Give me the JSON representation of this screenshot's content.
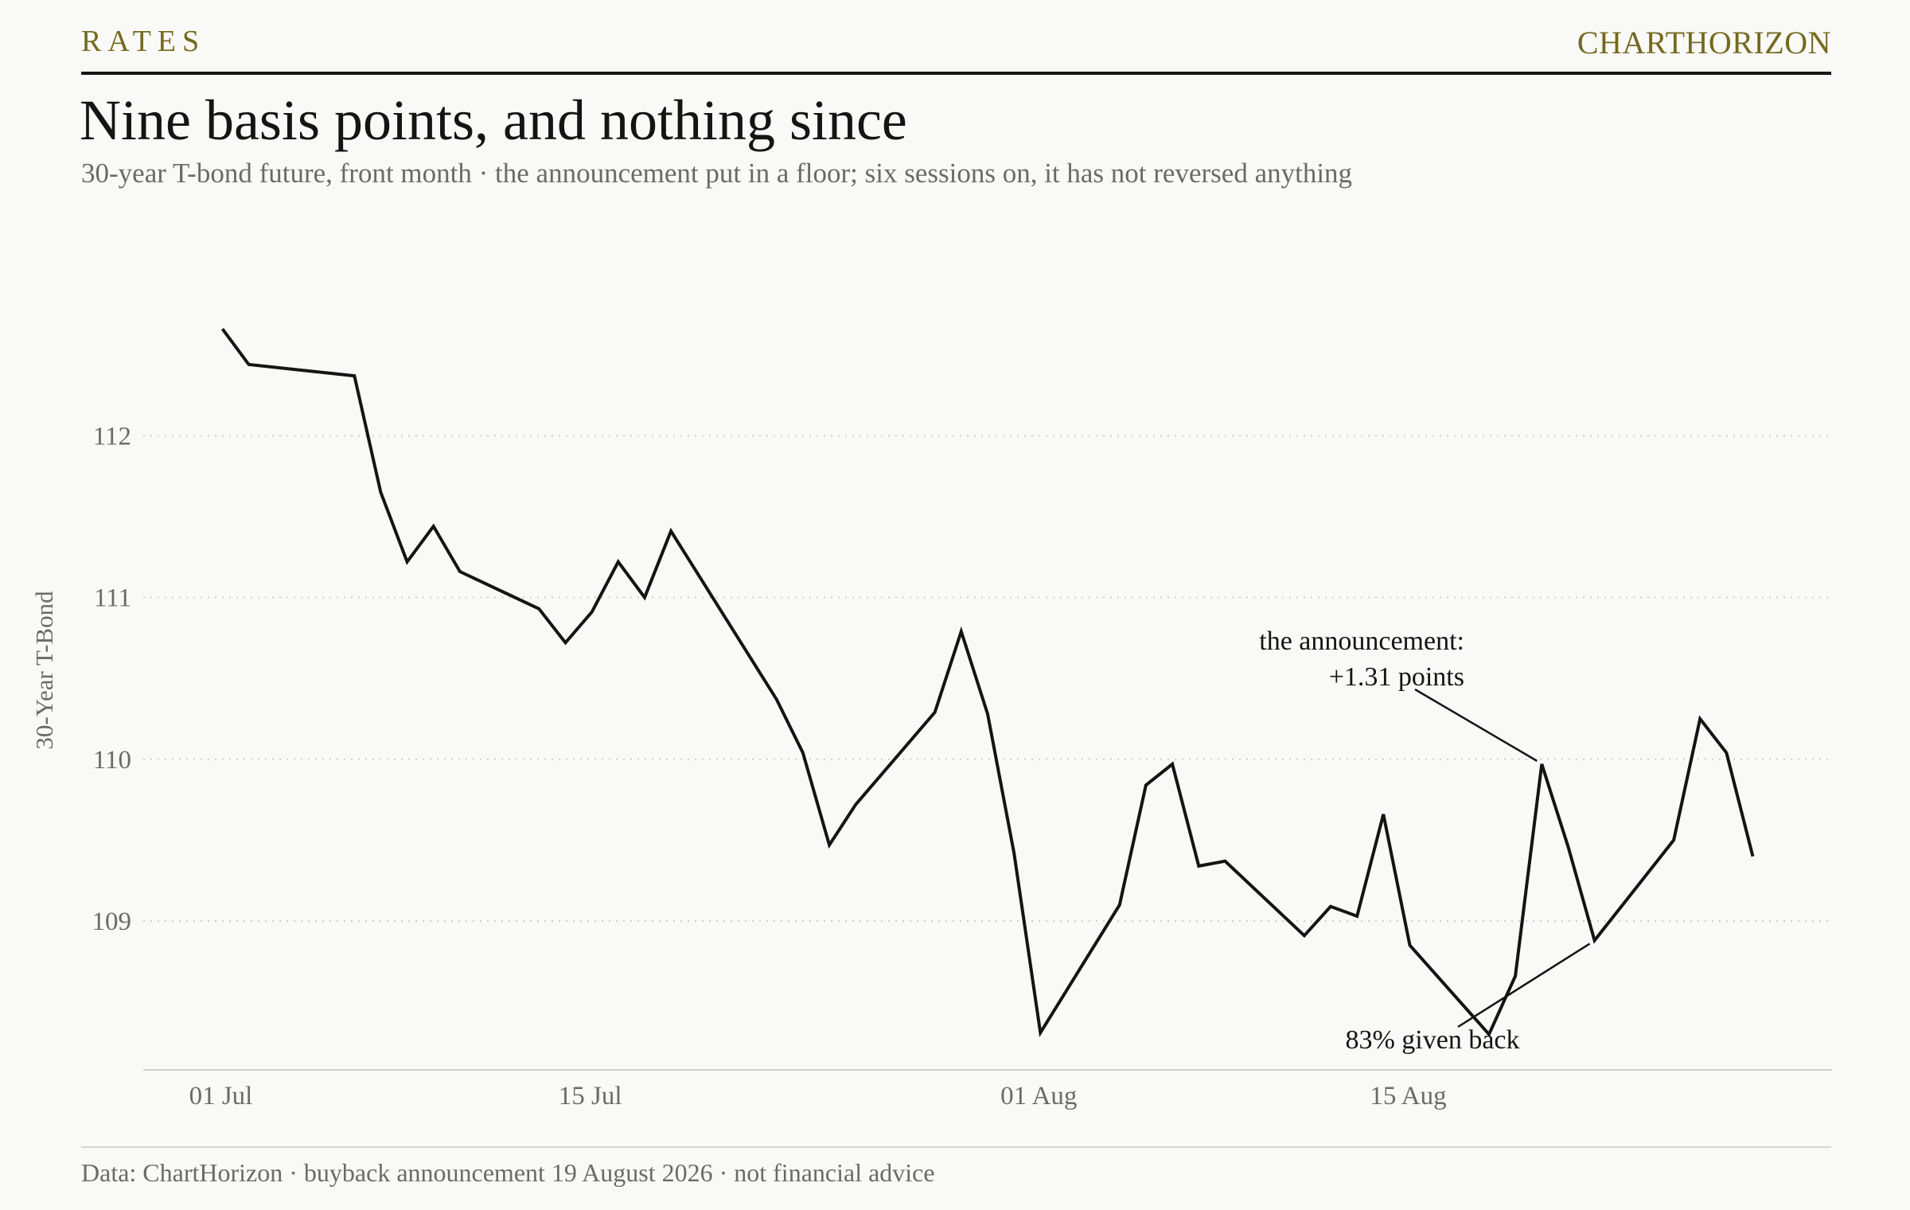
{
  "header": {
    "kicker": "RATES",
    "brand": "CHARTHORIZON",
    "title": "Nine basis points, and nothing since",
    "subtitle": "30-year T-bond future, front month · the announcement put in a floor; six sessions on, it has not reversed anything"
  },
  "footer": {
    "source": "Data: ChartHorizon · buyback announcement 19 August 2026 · not financial advice"
  },
  "colors": {
    "background": "#f9f9f7",
    "line": "#141414",
    "accent": "#75691f",
    "muted_text": "#6b6b66",
    "grid": "#cfcfc9",
    "axis": "#cfcfc9"
  },
  "chart_data": {
    "type": "line",
    "title": "Nine basis points, and nothing since",
    "subtitle": "30-year T-bond future, front month · the announcement put in a floor; six sessions on, it has not reversed anything",
    "xlabel": "",
    "ylabel": "30-Year T-Bond",
    "x_ticks": [
      "01 Jul",
      "15 Jul",
      "01 Aug",
      "15 Aug"
    ],
    "x_tick_dates": [
      "2026-07-01",
      "2026-07-15",
      "2026-08-01",
      "2026-08-15"
    ],
    "y_ticks": [
      109,
      110,
      111,
      112
    ],
    "ylim": [
      108.08,
      113.02
    ],
    "xlim": [
      "2026-06-28",
      "2026-08-31"
    ],
    "grid": "horizontal dotted",
    "legend": "none",
    "series": [
      {
        "points": [
          {
            "x": "2026-07-01",
            "y": 112.66
          },
          {
            "x": "2026-07-02",
            "y": 112.44
          },
          {
            "x": "2026-07-06",
            "y": 112.37
          },
          {
            "x": "2026-07-07",
            "y": 111.65
          },
          {
            "x": "2026-07-08",
            "y": 111.22
          },
          {
            "x": "2026-07-09",
            "y": 111.44
          },
          {
            "x": "2026-07-10",
            "y": 111.16
          },
          {
            "x": "2026-07-13",
            "y": 110.93
          },
          {
            "x": "2026-07-14",
            "y": 110.72
          },
          {
            "x": "2026-07-15",
            "y": 110.91
          },
          {
            "x": "2026-07-16",
            "y": 111.22
          },
          {
            "x": "2026-07-17",
            "y": 111.0
          },
          {
            "x": "2026-07-18",
            "y": 111.41
          },
          {
            "x": "2026-07-22",
            "y": 110.37
          },
          {
            "x": "2026-07-23",
            "y": 110.04
          },
          {
            "x": "2026-07-24",
            "y": 109.47
          },
          {
            "x": "2026-07-25",
            "y": 109.72
          },
          {
            "x": "2026-07-28",
            "y": 110.29
          },
          {
            "x": "2026-07-29",
            "y": 110.79
          },
          {
            "x": "2026-07-30",
            "y": 110.28
          },
          {
            "x": "2026-07-31",
            "y": 109.42
          },
          {
            "x": "2026-08-01",
            "y": 108.31
          },
          {
            "x": "2026-08-04",
            "y": 109.1
          },
          {
            "x": "2026-08-05",
            "y": 109.84
          },
          {
            "x": "2026-08-06",
            "y": 109.97
          },
          {
            "x": "2026-08-07",
            "y": 109.34
          },
          {
            "x": "2026-08-08",
            "y": 109.37
          },
          {
            "x": "2026-08-11",
            "y": 108.91
          },
          {
            "x": "2026-08-12",
            "y": 109.09
          },
          {
            "x": "2026-08-13",
            "y": 109.03
          },
          {
            "x": "2026-08-14",
            "y": 109.66
          },
          {
            "x": "2026-08-15",
            "y": 108.85
          },
          {
            "x": "2026-08-18",
            "y": 108.3
          },
          {
            "x": "2026-08-19",
            "y": 108.66
          },
          {
            "x": "2026-08-20",
            "y": 109.97
          },
          {
            "x": "2026-08-21",
            "y": 109.46
          },
          {
            "x": "2026-08-22",
            "y": 108.88
          },
          {
            "x": "2026-08-25",
            "y": 109.5
          },
          {
            "x": "2026-08-26",
            "y": 110.25
          },
          {
            "x": "2026-08-27",
            "y": 110.04
          },
          {
            "x": "2026-08-28",
            "y": 109.4
          }
        ]
      }
    ],
    "annotations": [
      {
        "lines": [
          "the announcement:",
          "+1.31 points"
        ],
        "target": {
          "x": "2026-08-20",
          "y": 109.97
        }
      },
      {
        "lines": [
          "83% given back"
        ],
        "target": {
          "x": "2026-08-22",
          "y": 108.88
        }
      }
    ]
  }
}
